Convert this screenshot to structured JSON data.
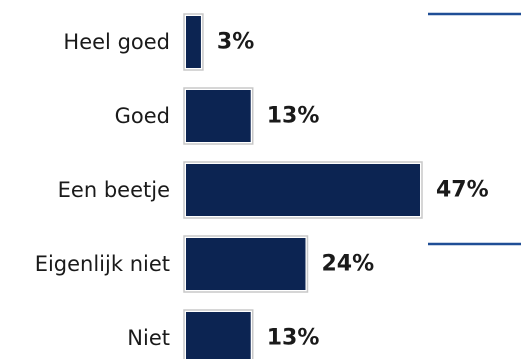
{
  "chart_data": {
    "type": "bar",
    "orientation": "horizontal",
    "categories": [
      "Heel goed",
      "Goed",
      "Een beetje",
      "Eigenlijk niet",
      "Niet"
    ],
    "values": [
      3,
      13,
      47,
      24,
      13
    ],
    "value_labels": [
      "3%",
      "13%",
      "47%",
      "24%",
      "13%"
    ],
    "unit": "%",
    "xlim": [
      0,
      47
    ],
    "title": "",
    "xlabel": "",
    "ylabel": "",
    "grid": false,
    "legend": "none",
    "colors": {
      "bar": "#0c2452",
      "bar_outline": "#c8c8c8",
      "accent_line": "#1f4e96",
      "text": "#1a1a1a"
    }
  }
}
